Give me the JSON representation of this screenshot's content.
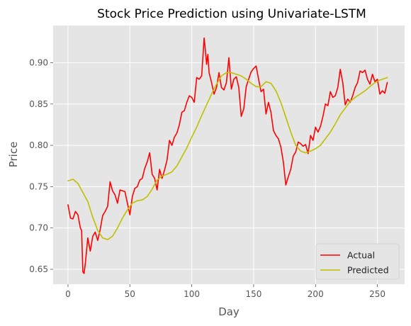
{
  "chart_data": {
    "type": "line",
    "title": "Stock Price Prediction using Univariate-LSTM",
    "xlabel": "Day",
    "ylabel": "Price",
    "xlim": [
      -12,
      272
    ],
    "ylim": [
      0.632,
      0.945
    ],
    "xticks": [
      0,
      50,
      100,
      150,
      200,
      250
    ],
    "yticks": [
      0.65,
      0.7,
      0.75,
      0.8,
      0.85,
      0.9
    ],
    "ytick_labels": [
      "0.65",
      "0.70",
      "0.75",
      "0.80",
      "0.85",
      "0.90"
    ],
    "grid": true,
    "legend_position": "lower-right",
    "colors": {
      "plot_bg": "#e5e5e5",
      "grid": "#ffffff",
      "Actual": "#ff0000",
      "Predicted": "#bfbf00"
    },
    "series": [
      {
        "name": "Actual",
        "x": [
          0,
          2,
          4,
          6,
          8,
          10,
          11,
          12,
          13,
          14,
          16,
          18,
          20,
          22,
          24,
          26,
          28,
          30,
          32,
          34,
          36,
          38,
          40,
          42,
          44,
          46,
          48,
          50,
          52,
          54,
          56,
          58,
          60,
          62,
          64,
          66,
          68,
          70,
          72,
          74,
          76,
          78,
          80,
          82,
          84,
          86,
          88,
          90,
          92,
          94,
          96,
          98,
          100,
          102,
          104,
          106,
          108,
          110,
          111,
          112,
          113,
          114,
          116,
          118,
          120,
          122,
          124,
          126,
          128,
          130,
          132,
          134,
          136,
          138,
          140,
          142,
          144,
          146,
          148,
          150,
          152,
          154,
          156,
          158,
          160,
          162,
          164,
          166,
          168,
          170,
          172,
          174,
          176,
          178,
          180,
          182,
          184,
          186,
          188,
          190,
          192,
          194,
          196,
          198,
          200,
          202,
          204,
          206,
          208,
          210,
          212,
          214,
          216,
          218,
          220,
          222,
          224,
          226,
          228,
          230,
          232,
          234,
          236,
          238,
          240,
          242,
          244,
          246,
          248,
          250,
          252,
          254,
          256,
          258
        ],
        "y": [
          0.728,
          0.712,
          0.711,
          0.72,
          0.716,
          0.7,
          0.697,
          0.647,
          0.645,
          0.657,
          0.688,
          0.672,
          0.69,
          0.695,
          0.685,
          0.698,
          0.715,
          0.72,
          0.726,
          0.756,
          0.745,
          0.74,
          0.73,
          0.746,
          0.745,
          0.744,
          0.73,
          0.716,
          0.738,
          0.748,
          0.75,
          0.758,
          0.76,
          0.772,
          0.78,
          0.791,
          0.765,
          0.76,
          0.746,
          0.771,
          0.76,
          0.77,
          0.782,
          0.806,
          0.8,
          0.81,
          0.815,
          0.825,
          0.84,
          0.842,
          0.852,
          0.86,
          0.858,
          0.852,
          0.882,
          0.88,
          0.884,
          0.93,
          0.915,
          0.898,
          0.91,
          0.888,
          0.876,
          0.862,
          0.87,
          0.888,
          0.87,
          0.867,
          0.876,
          0.906,
          0.868,
          0.88,
          0.883,
          0.87,
          0.835,
          0.844,
          0.871,
          0.88,
          0.889,
          0.893,
          0.896,
          0.88,
          0.865,
          0.868,
          0.838,
          0.852,
          0.84,
          0.818,
          0.812,
          0.808,
          0.798,
          0.78,
          0.752,
          0.762,
          0.771,
          0.787,
          0.792,
          0.804,
          0.802,
          0.799,
          0.801,
          0.79,
          0.812,
          0.806,
          0.822,
          0.816,
          0.823,
          0.835,
          0.85,
          0.848,
          0.865,
          0.858,
          0.86,
          0.87,
          0.892,
          0.876,
          0.849,
          0.856,
          0.852,
          0.86,
          0.87,
          0.876,
          0.89,
          0.888,
          0.891,
          0.88,
          0.874,
          0.886,
          0.877,
          0.88,
          0.862,
          0.866,
          0.863,
          0.876
        ]
      },
      {
        "name": "Predicted",
        "x": [
          0,
          4,
          8,
          12,
          16,
          20,
          24,
          28,
          32,
          36,
          40,
          44,
          48,
          52,
          56,
          60,
          64,
          68,
          72,
          76,
          80,
          84,
          88,
          92,
          96,
          100,
          104,
          108,
          112,
          116,
          120,
          124,
          128,
          132,
          136,
          140,
          144,
          148,
          152,
          156,
          160,
          164,
          168,
          172,
          176,
          180,
          184,
          188,
          192,
          196,
          200,
          204,
          208,
          212,
          216,
          220,
          224,
          228,
          232,
          236,
          240,
          244,
          248,
          252,
          256,
          258
        ],
        "y": [
          0.757,
          0.759,
          0.754,
          0.743,
          0.732,
          0.713,
          0.697,
          0.688,
          0.686,
          0.69,
          0.7,
          0.712,
          0.722,
          0.73,
          0.733,
          0.734,
          0.738,
          0.747,
          0.758,
          0.763,
          0.765,
          0.768,
          0.775,
          0.786,
          0.797,
          0.81,
          0.822,
          0.836,
          0.849,
          0.862,
          0.874,
          0.884,
          0.888,
          0.888,
          0.886,
          0.884,
          0.88,
          0.875,
          0.871,
          0.871,
          0.877,
          0.875,
          0.866,
          0.852,
          0.834,
          0.816,
          0.8,
          0.793,
          0.791,
          0.793,
          0.796,
          0.8,
          0.808,
          0.816,
          0.826,
          0.837,
          0.845,
          0.853,
          0.858,
          0.862,
          0.866,
          0.871,
          0.876,
          0.879,
          0.881,
          0.882
        ]
      }
    ]
  }
}
